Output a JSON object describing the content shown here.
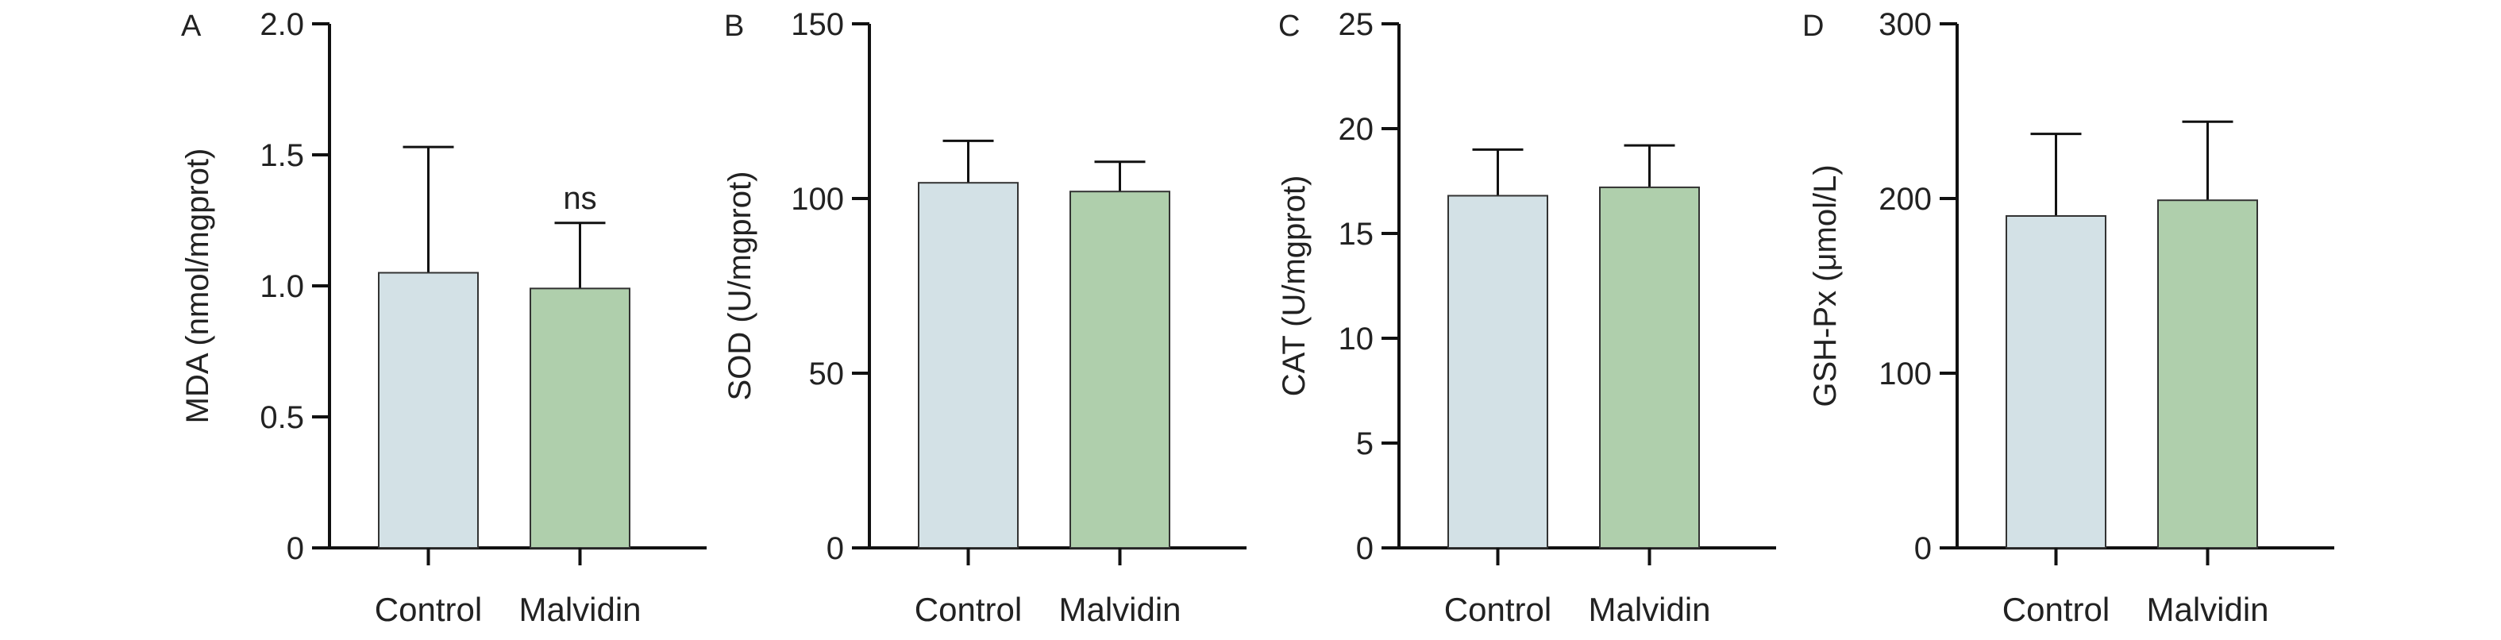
{
  "chart_data": [
    {
      "panel": "A",
      "type": "bar",
      "categories": [
        "Control",
        "Malvidin"
      ],
      "values": [
        1.05,
        0.99
      ],
      "errors": [
        0.48,
        0.25
      ],
      "annotations": [
        "",
        "ns"
      ],
      "ylabel": "MDA (nmol/mgprot)",
      "xlabel": "",
      "ylim": [
        0,
        2.0
      ],
      "yticks": [
        "0",
        "0.5",
        "1.0",
        "1.5",
        "2.0"
      ],
      "colors": [
        "#d3e1e6",
        "#afcfac"
      ]
    },
    {
      "panel": "B",
      "type": "bar",
      "categories": [
        "Control",
        "Malvidin"
      ],
      "values": [
        104.5,
        102.0
      ],
      "errors": [
        12.0,
        8.5
      ],
      "annotations": [
        "",
        ""
      ],
      "ylabel": "SOD (U/mgprot)",
      "xlabel": "",
      "ylim": [
        0,
        150
      ],
      "yticks": [
        "0",
        "50",
        "100",
        "150"
      ],
      "colors": [
        "#d3e1e6",
        "#afcfac"
      ]
    },
    {
      "panel": "C",
      "type": "bar",
      "categories": [
        "Control",
        "Malvidin"
      ],
      "values": [
        16.8,
        17.2
      ],
      "errors": [
        2.2,
        2.0
      ],
      "annotations": [
        "",
        ""
      ],
      "ylabel": "CAT (U/mgprot)",
      "xlabel": "",
      "ylim": [
        0,
        25
      ],
      "yticks": [
        "0",
        "5",
        "10",
        "15",
        "20",
        "25"
      ],
      "colors": [
        "#d3e1e6",
        "#afcfac"
      ]
    },
    {
      "panel": "D",
      "type": "bar",
      "categories": [
        "Control",
        "Malvidin"
      ],
      "values": [
        190,
        199
      ],
      "errors": [
        47,
        45
      ],
      "annotations": [
        "",
        ""
      ],
      "ylabel": "GSH-Px (μmol/L)",
      "xlabel": "",
      "ylim": [
        0,
        300
      ],
      "yticks": [
        "0",
        "100",
        "200",
        "300"
      ],
      "colors": [
        "#d3e1e6",
        "#afcfac"
      ]
    }
  ]
}
